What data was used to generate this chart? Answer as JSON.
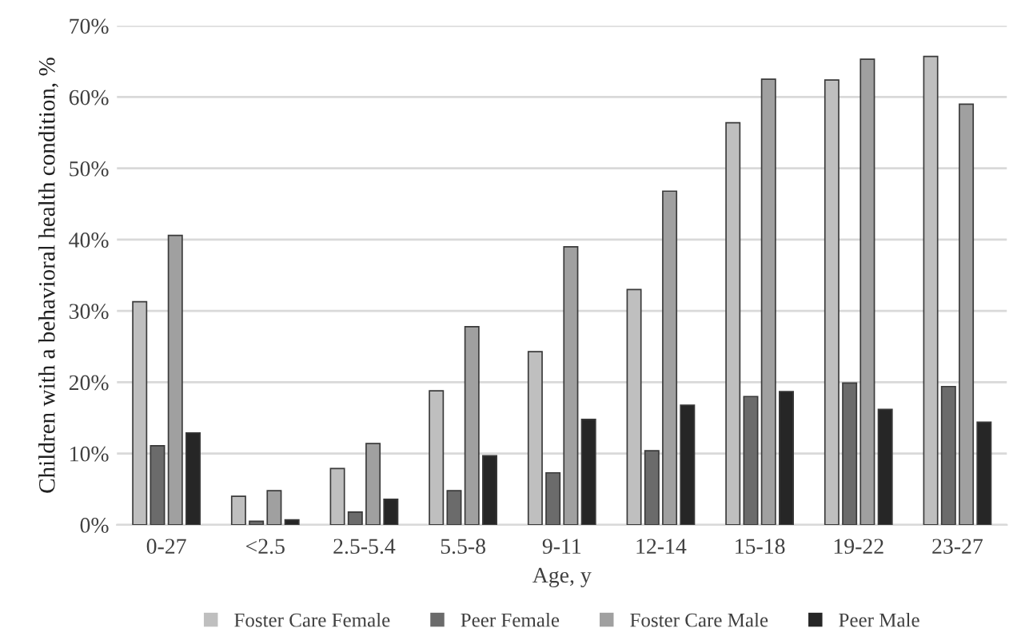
{
  "chart_data": {
    "type": "bar",
    "xlabel": "Age, y",
    "ylabel": "Children with a behavioral health condition, %",
    "categories": [
      "0-27",
      "<2.5",
      "2.5-5.4",
      "5.5-8",
      "9-11",
      "12-14",
      "15-18",
      "19-22",
      "23-27"
    ],
    "series": [
      {
        "name": "Foster Care Female",
        "color": "#bfbfbf",
        "values": [
          31.3,
          4.0,
          7.9,
          18.8,
          24.3,
          33.0,
          56.4,
          62.4,
          65.7
        ]
      },
      {
        "name": "Peer Female",
        "color": "#6b6b6b",
        "values": [
          11.1,
          0.5,
          1.8,
          4.8,
          7.3,
          10.4,
          18.0,
          19.9,
          19.4
        ]
      },
      {
        "name": "Foster Care Male",
        "color": "#a0a0a0",
        "values": [
          40.6,
          4.8,
          11.4,
          27.8,
          39.0,
          46.8,
          62.5,
          65.3,
          59.0
        ]
      },
      {
        "name": "Peer Male",
        "color": "#262626",
        "values": [
          12.9,
          0.7,
          3.6,
          9.7,
          14.8,
          16.8,
          18.7,
          16.2,
          14.4
        ]
      }
    ],
    "ylim": [
      0,
      70
    ],
    "yticks": [
      {
        "value": 0,
        "label": "0%"
      },
      {
        "value": 10,
        "label": "10%"
      },
      {
        "value": 20,
        "label": "20%"
      },
      {
        "value": 30,
        "label": "30%"
      },
      {
        "value": 40,
        "label": "40%"
      },
      {
        "value": 50,
        "label": "50%"
      },
      {
        "value": 60,
        "label": "60%"
      },
      {
        "value": 70,
        "label": "70%"
      }
    ],
    "grid": "y",
    "legend": "bottom"
  }
}
